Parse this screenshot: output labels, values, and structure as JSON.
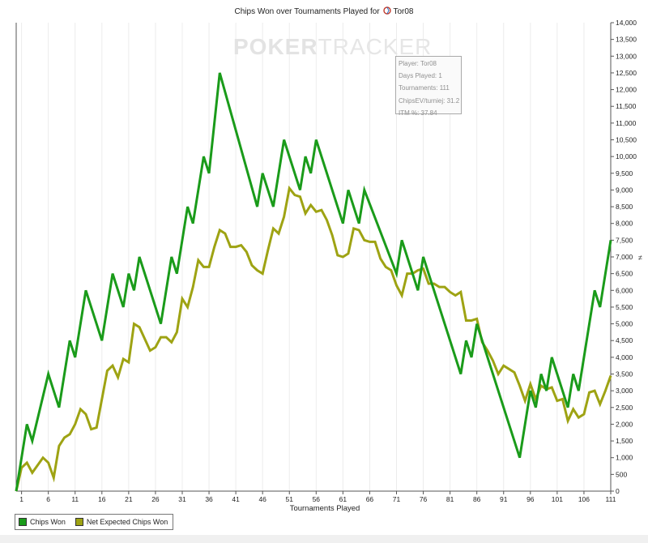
{
  "title_prefix": "Chips Won over Tournaments Played for",
  "player_name": "Tor08",
  "watermark": {
    "poker": "POKER",
    "tracker": "TRACKER"
  },
  "infobox": {
    "lines": [
      "Player: Tor08",
      "Days Played: 1",
      "Tournaments: 111",
      "ChipsEV/turniej: 31.2",
      "ITM %: 37.84"
    ]
  },
  "side_marker": "≠",
  "chart_data": {
    "type": "line",
    "xlabel": "Tournaments Played",
    "ylabel": "",
    "xlim": [
      0,
      111
    ],
    "ylim": [
      0,
      14000
    ],
    "xticks": [
      1,
      6,
      11,
      16,
      21,
      26,
      31,
      36,
      41,
      46,
      51,
      56,
      61,
      66,
      71,
      76,
      81,
      86,
      91,
      96,
      101,
      106,
      111
    ],
    "yticks": [
      0,
      500,
      1000,
      1500,
      2000,
      2500,
      3000,
      3500,
      4000,
      4500,
      5000,
      5500,
      6000,
      6500,
      7000,
      7500,
      8000,
      8500,
      9000,
      9500,
      10000,
      10500,
      11000,
      11500,
      12000,
      12500,
      13000,
      13500,
      14000
    ],
    "ytick_labels": [
      "0",
      "500",
      "1,000",
      "1,500",
      "2,000",
      "2,500",
      "3,000",
      "3,500",
      "4,000",
      "4,500",
      "5,000",
      "5,500",
      "6,000",
      "6,500",
      "7,000",
      "7,500",
      "8,000",
      "8,500",
      "9,000",
      "9,500",
      "10,000",
      "10,500",
      "11,000",
      "11,500",
      "12,000",
      "12,500",
      "13,000",
      "13,500",
      "14,000"
    ],
    "grid": "vertical",
    "legend_position": "bottom-left",
    "series": [
      {
        "name": "Chips Won",
        "color": "#1a9b1a",
        "points": [
          [
            0,
            0
          ],
          [
            2,
            2000
          ],
          [
            3,
            1500
          ],
          [
            6,
            3500
          ],
          [
            8,
            2500
          ],
          [
            10,
            4500
          ],
          [
            11,
            4000
          ],
          [
            13,
            6000
          ],
          [
            16,
            4500
          ],
          [
            18,
            6500
          ],
          [
            20,
            5500
          ],
          [
            21,
            6500
          ],
          [
            22,
            6000
          ],
          [
            23,
            7000
          ],
          [
            27,
            5000
          ],
          [
            29,
            7000
          ],
          [
            30,
            6500
          ],
          [
            32,
            8500
          ],
          [
            33,
            8000
          ],
          [
            35,
            10000
          ],
          [
            36,
            9500
          ],
          [
            38,
            12500
          ],
          [
            45,
            8500
          ],
          [
            46,
            9500
          ],
          [
            48,
            8500
          ],
          [
            50,
            10500
          ],
          [
            53,
            9000
          ],
          [
            54,
            10000
          ],
          [
            55,
            9500
          ],
          [
            56,
            10500
          ],
          [
            61,
            8000
          ],
          [
            62,
            9000
          ],
          [
            64,
            8000
          ],
          [
            65,
            9000
          ],
          [
            71,
            6500
          ],
          [
            72,
            7500
          ],
          [
            75,
            6000
          ],
          [
            76,
            7000
          ],
          [
            83,
            3500
          ],
          [
            84,
            4500
          ],
          [
            85,
            4000
          ],
          [
            86,
            5000
          ],
          [
            94,
            1000
          ],
          [
            96,
            3000
          ],
          [
            97,
            2500
          ],
          [
            98,
            3500
          ],
          [
            99,
            3000
          ],
          [
            100,
            4000
          ],
          [
            103,
            2500
          ],
          [
            104,
            3500
          ],
          [
            105,
            3000
          ],
          [
            108,
            6000
          ],
          [
            109,
            5500
          ],
          [
            111,
            7500
          ]
        ]
      },
      {
        "name": "Net Expected Chips Won",
        "color": "#9ea313",
        "points": [
          [
            0,
            0
          ],
          [
            1,
            700
          ],
          [
            2,
            850
          ],
          [
            3,
            550
          ],
          [
            5,
            1000
          ],
          [
            6,
            850
          ],
          [
            7,
            400
          ],
          [
            8,
            1350
          ],
          [
            9,
            1600
          ],
          [
            10,
            1700
          ],
          [
            11,
            2000
          ],
          [
            12,
            2450
          ],
          [
            13,
            2300
          ],
          [
            14,
            1850
          ],
          [
            15,
            1900
          ],
          [
            17,
            3600
          ],
          [
            18,
            3750
          ],
          [
            19,
            3400
          ],
          [
            20,
            3950
          ],
          [
            21,
            3850
          ],
          [
            22,
            5000
          ],
          [
            23,
            4900
          ],
          [
            24,
            4550
          ],
          [
            25,
            4200
          ],
          [
            26,
            4300
          ],
          [
            27,
            4600
          ],
          [
            28,
            4600
          ],
          [
            29,
            4450
          ],
          [
            30,
            4750
          ],
          [
            31,
            5750
          ],
          [
            32,
            5500
          ],
          [
            33,
            6100
          ],
          [
            34,
            6900
          ],
          [
            35,
            6700
          ],
          [
            36,
            6700
          ],
          [
            37,
            7300
          ],
          [
            38,
            7800
          ],
          [
            39,
            7700
          ],
          [
            40,
            7300
          ],
          [
            41,
            7300
          ],
          [
            42,
            7350
          ],
          [
            43,
            7150
          ],
          [
            44,
            6750
          ],
          [
            45,
            6600
          ],
          [
            46,
            6500
          ],
          [
            47,
            7200
          ],
          [
            48,
            7850
          ],
          [
            49,
            7700
          ],
          [
            50,
            8200
          ],
          [
            51,
            9050
          ],
          [
            52,
            8850
          ],
          [
            53,
            8800
          ],
          [
            54,
            8300
          ],
          [
            55,
            8550
          ],
          [
            56,
            8350
          ],
          [
            57,
            8400
          ],
          [
            58,
            8100
          ],
          [
            59,
            7650
          ],
          [
            60,
            7050
          ],
          [
            61,
            7000
          ],
          [
            62,
            7100
          ],
          [
            63,
            7850
          ],
          [
            64,
            7800
          ],
          [
            65,
            7500
          ],
          [
            66,
            7450
          ],
          [
            67,
            7450
          ],
          [
            68,
            6950
          ],
          [
            69,
            6700
          ],
          [
            70,
            6600
          ],
          [
            71,
            6150
          ],
          [
            72,
            5850
          ],
          [
            73,
            6500
          ],
          [
            74,
            6500
          ],
          [
            75,
            6600
          ],
          [
            76,
            6650
          ],
          [
            77,
            6200
          ],
          [
            78,
            6200
          ],
          [
            79,
            6100
          ],
          [
            80,
            6100
          ],
          [
            81,
            5950
          ],
          [
            82,
            5850
          ],
          [
            83,
            5950
          ],
          [
            84,
            5100
          ],
          [
            85,
            5100
          ],
          [
            86,
            5150
          ],
          [
            87,
            4450
          ],
          [
            88,
            4200
          ],
          [
            89,
            3900
          ],
          [
            90,
            3500
          ],
          [
            91,
            3750
          ],
          [
            92,
            3650
          ],
          [
            93,
            3550
          ],
          [
            94,
            3150
          ],
          [
            95,
            2700
          ],
          [
            96,
            3200
          ],
          [
            97,
            2750
          ],
          [
            98,
            3150
          ],
          [
            99,
            3050
          ],
          [
            100,
            3100
          ],
          [
            101,
            2700
          ],
          [
            102,
            2750
          ],
          [
            103,
            2100
          ],
          [
            104,
            2450
          ],
          [
            105,
            2200
          ],
          [
            106,
            2300
          ],
          [
            107,
            2950
          ],
          [
            108,
            3000
          ],
          [
            109,
            2600
          ],
          [
            110,
            3000
          ],
          [
            111,
            3450
          ]
        ]
      }
    ]
  }
}
